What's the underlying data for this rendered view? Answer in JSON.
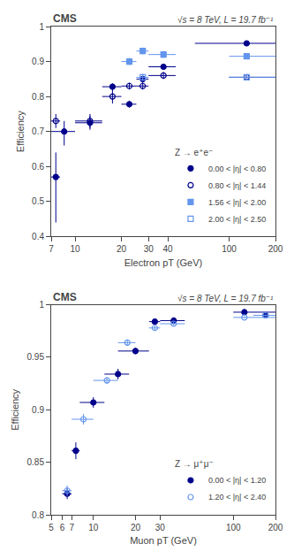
{
  "chart_data": [
    {
      "type": "scatter",
      "annotations": [
        "CMS",
        "√s = 8 TeV, L = 19.7 fb⁻¹"
      ],
      "xlabel": "Electron pT (GeV)",
      "ylabel": "Efficiency",
      "log": "x",
      "xlim": [
        7,
        200
      ],
      "xticks": [
        7,
        10,
        20,
        30,
        40,
        100,
        200
      ],
      "ylim": [
        0.4,
        1
      ],
      "yticks": [
        0.4,
        0.5,
        0.6,
        0.7,
        0.8,
        0.9,
        1
      ],
      "grid": false,
      "legend": "lower right",
      "legend_title": "Z → e⁺e⁻",
      "series": [
        {
          "name": "0.00 < |η| < 0.80",
          "marker": "circle",
          "color": "#00008B",
          "x": [
            7.5,
            8.5,
            12.5,
            17.5,
            22.5,
            27.5,
            37.5,
            130.0
          ],
          "xerr_lo": [
            0.5,
            1.5,
            2.5,
            2.5,
            2.5,
            2.5,
            7.5,
            70.0
          ],
          "xerr_hi": [
            0.5,
            1.5,
            2.5,
            2.5,
            2.5,
            2.5,
            7.5,
            70.0
          ],
          "values": [
            0.57,
            0.7,
            0.725,
            0.828,
            0.778,
            0.85,
            0.885,
            0.952
          ],
          "yerr_lo": [
            0.13,
            0.04,
            0.02,
            0.01,
            0.01,
            0.01,
            0.005,
            0.005
          ],
          "yerr_hi": [
            0.07,
            0.03,
            0.02,
            0.01,
            0.01,
            0.01,
            0.005,
            0.005
          ]
        },
        {
          "name": "0.80 < |η| < 1.44",
          "marker": "circle-open",
          "color": "#00008B",
          "x": [
            7.5,
            12.5,
            17.5,
            22.5,
            27.5,
            37.5,
            130.0
          ],
          "xerr_lo": [
            0.5,
            2.5,
            2.5,
            2.5,
            2.5,
            7.5,
            30.0
          ],
          "xerr_hi": [
            0.5,
            2.5,
            2.5,
            2.5,
            2.5,
            7.5,
            70.0
          ],
          "values": [
            0.73,
            0.73,
            0.8,
            0.83,
            0.83,
            0.86,
            0.855
          ],
          "yerr_lo": [
            0.02,
            0.02,
            0.02,
            0.01,
            0.01,
            0.01,
            0.005
          ],
          "yerr_hi": [
            0.02,
            0.02,
            0.02,
            0.01,
            0.01,
            0.01,
            0.005
          ]
        },
        {
          "name": "1.56 < |η| < 2.00",
          "marker": "square",
          "color": "#6495ED",
          "x": [
            22.5,
            27.5,
            37.5,
            130.0
          ],
          "xerr_lo": [
            2.5,
            2.5,
            7.5,
            30.0
          ],
          "xerr_hi": [
            2.5,
            2.5,
            7.5,
            70.0
          ],
          "values": [
            0.9,
            0.93,
            0.92,
            0.915
          ],
          "yerr_lo": [
            0.01,
            0.01,
            0.01,
            0.005
          ],
          "yerr_hi": [
            0.01,
            0.01,
            0.01,
            0.005
          ]
        },
        {
          "name": "2.00 < |η| < 2.50",
          "marker": "square-open",
          "color": "#6495ED",
          "x": [
            27.5,
            130.0
          ],
          "xerr_lo": [
            2.5,
            30.0
          ],
          "xerr_hi": [
            2.5,
            70.0
          ],
          "values": [
            0.855,
            0.855
          ],
          "yerr_lo": [
            0.01,
            0.005
          ],
          "yerr_hi": [
            0.01,
            0.005
          ]
        }
      ]
    },
    {
      "type": "scatter",
      "annotations": [
        "CMS",
        "√s = 8 TeV, L = 19.7 fb⁻¹"
      ],
      "xlabel": "Muon pT (GeV)",
      "ylabel": "Efficiency",
      "log": "x",
      "xlim": [
        5,
        200
      ],
      "xticks": [
        5,
        6,
        7,
        10,
        20,
        30,
        100,
        200
      ],
      "ylim": [
        0.8,
        1
      ],
      "yticks": [
        0.8,
        0.85,
        0.9,
        0.95,
        1
      ],
      "grid": false,
      "legend": "lower right",
      "legend_title": "Z → μ⁺μ⁻",
      "series": [
        {
          "name": "0.00 < |η| < 1.20",
          "marker": "circle",
          "color": "#00008B",
          "x": [
            6.5,
            7.5,
            10.0,
            15.0,
            20.0,
            27.5,
            37.5,
            120.0,
            170.0
          ],
          "xerr_lo": [
            0.5,
            0.5,
            2.0,
            3.0,
            5.0,
            2.5,
            7.5,
            20.0,
            30.0
          ],
          "xerr_hi": [
            0.5,
            0.5,
            2.0,
            3.0,
            5.0,
            2.5,
            7.5,
            80.0,
            30.0
          ],
          "values": [
            0.82,
            0.861,
            0.907,
            0.934,
            0.956,
            0.984,
            0.985,
            0.993,
            0.99
          ],
          "yerr_lo": [
            0.005,
            0.008,
            0.005,
            0.005,
            0.003,
            0.002,
            0.002,
            0.001,
            0.001
          ],
          "yerr_hi": [
            0.005,
            0.008,
            0.005,
            0.005,
            0.003,
            0.002,
            0.002,
            0.001,
            0.001
          ]
        },
        {
          "name": "1.20 < |η| < 2.40",
          "marker": "circle-open",
          "color": "#6495ED",
          "x": [
            6.5,
            8.5,
            12.5,
            17.5,
            27.5,
            37.5,
            120.0,
            170.0
          ],
          "xerr_lo": [
            0.5,
            1.5,
            2.5,
            2.5,
            2.5,
            7.5,
            20.0,
            30.0
          ],
          "xerr_hi": [
            0.5,
            1.5,
            2.5,
            2.5,
            2.5,
            7.5,
            80.0,
            30.0
          ],
          "values": [
            0.823,
            0.891,
            0.928,
            0.964,
            0.978,
            0.982,
            0.988,
            0.99
          ],
          "yerr_lo": [
            0.005,
            0.005,
            0.003,
            0.003,
            0.002,
            0.002,
            0.001,
            0.001
          ],
          "yerr_hi": [
            0.005,
            0.005,
            0.003,
            0.003,
            0.002,
            0.002,
            0.001,
            0.001
          ]
        }
      ]
    }
  ]
}
